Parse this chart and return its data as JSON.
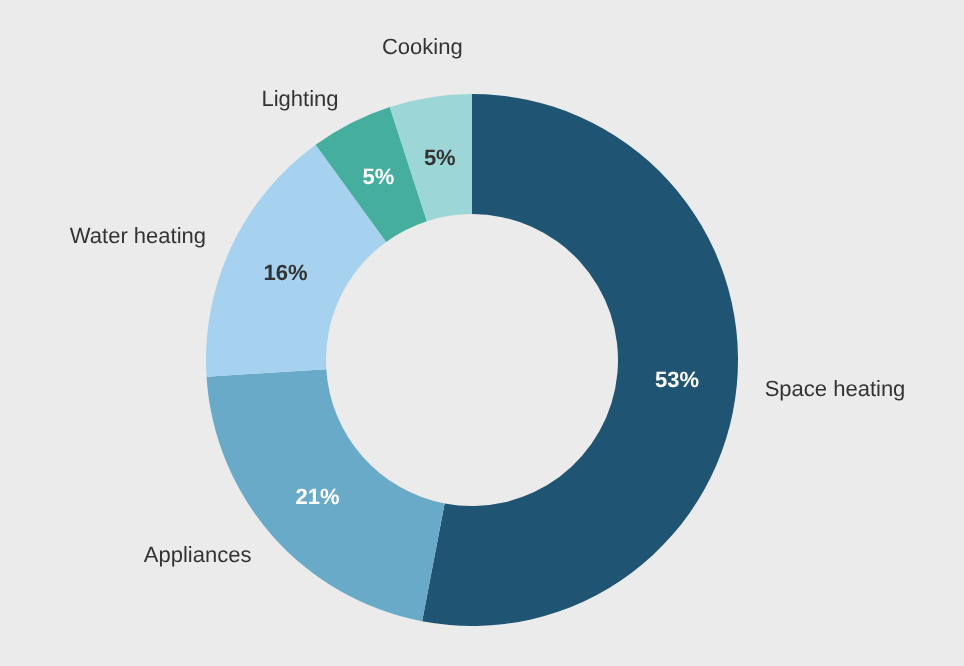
{
  "chart_data": {
    "type": "donut",
    "categories": [
      "Space heating",
      "Appliances",
      "Water heating",
      "Lighting",
      "Cooking"
    ],
    "values": [
      53,
      21,
      16,
      5,
      5
    ],
    "colors": [
      "#1f5472",
      "#6aaac9",
      "#a6d2ef",
      "#45ae9f",
      "#9dd6d6"
    ],
    "value_labels": [
      "53%",
      "21%",
      "16%",
      "5%",
      "5%"
    ],
    "legend": false
  }
}
